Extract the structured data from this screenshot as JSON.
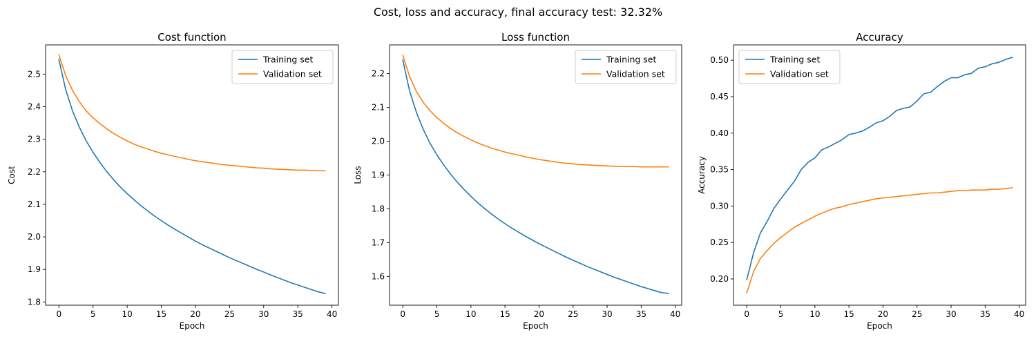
{
  "figure": {
    "suptitle": "Cost, loss and accuracy, final accuracy test: 32.32%"
  },
  "colors": {
    "training": "#1f77b4",
    "validation": "#ff7f0e",
    "axis": "#000000",
    "legend_border": "#cccccc"
  },
  "chart_data": [
    {
      "type": "line",
      "title": "Cost function",
      "xlabel": "Epoch",
      "ylabel": "Cost",
      "xlim": [
        -1.95,
        40.95
      ],
      "ylim": [
        1.79,
        2.59
      ],
      "xticks": [
        0,
        5,
        10,
        15,
        20,
        25,
        30,
        35,
        40
      ],
      "yticks": [
        1.8,
        1.9,
        2.0,
        2.1,
        2.2,
        2.3,
        2.4,
        2.5
      ],
      "ytick_labels": [
        "1.8",
        "1.9",
        "2.0",
        "2.1",
        "2.2",
        "2.3",
        "2.4",
        "2.5"
      ],
      "grid": false,
      "legend_position": "upper right",
      "x": [
        0,
        1,
        2,
        3,
        4,
        5,
        6,
        7,
        8,
        9,
        10,
        11,
        12,
        13,
        14,
        15,
        16,
        17,
        18,
        19,
        20,
        21,
        22,
        23,
        24,
        25,
        26,
        27,
        28,
        29,
        30,
        31,
        32,
        33,
        34,
        35,
        36,
        37,
        38,
        39
      ],
      "series": [
        {
          "name": "Training set",
          "values": [
            2.545,
            2.452,
            2.387,
            2.337,
            2.295,
            2.26,
            2.229,
            2.201,
            2.176,
            2.153,
            2.133,
            2.114,
            2.096,
            2.08,
            2.064,
            2.05,
            2.036,
            2.023,
            2.011,
            1.999,
            1.987,
            1.976,
            1.966,
            1.956,
            1.946,
            1.936,
            1.927,
            1.918,
            1.909,
            1.9,
            1.892,
            1.883,
            1.875,
            1.867,
            1.859,
            1.852,
            1.845,
            1.838,
            1.831,
            1.826
          ]
        },
        {
          "name": "Validation set",
          "values": [
            2.56,
            2.495,
            2.45,
            2.415,
            2.387,
            2.366,
            2.348,
            2.332,
            2.318,
            2.306,
            2.295,
            2.285,
            2.277,
            2.27,
            2.263,
            2.257,
            2.252,
            2.247,
            2.243,
            2.238,
            2.234,
            2.231,
            2.228,
            2.225,
            2.222,
            2.22,
            2.218,
            2.216,
            2.214,
            2.212,
            2.211,
            2.209,
            2.208,
            2.207,
            2.206,
            2.205,
            2.205,
            2.204,
            2.203,
            2.203
          ]
        }
      ]
    },
    {
      "type": "line",
      "title": "Loss function",
      "xlabel": "Epoch",
      "ylabel": "Loss",
      "xlim": [
        -1.95,
        40.95
      ],
      "ylim": [
        1.515,
        2.285
      ],
      "xticks": [
        0,
        5,
        10,
        15,
        20,
        25,
        30,
        35,
        40
      ],
      "yticks": [
        1.6,
        1.7,
        1.8,
        1.9,
        2.0,
        2.1,
        2.2
      ],
      "ytick_labels": [
        "1.6",
        "1.7",
        "1.8",
        "1.9",
        "2.0",
        "2.1",
        "2.2"
      ],
      "grid": false,
      "legend_position": "upper right",
      "x": [
        0,
        1,
        2,
        3,
        4,
        5,
        6,
        7,
        8,
        9,
        10,
        11,
        12,
        13,
        14,
        15,
        16,
        17,
        18,
        19,
        20,
        21,
        22,
        23,
        24,
        25,
        26,
        27,
        28,
        29,
        30,
        31,
        32,
        33,
        34,
        35,
        36,
        37,
        38,
        39
      ],
      "series": [
        {
          "name": "Training set",
          "values": [
            2.24,
            2.148,
            2.085,
            2.035,
            1.994,
            1.96,
            1.93,
            1.903,
            1.879,
            1.857,
            1.837,
            1.818,
            1.801,
            1.785,
            1.77,
            1.756,
            1.743,
            1.731,
            1.719,
            1.708,
            1.697,
            1.687,
            1.677,
            1.667,
            1.657,
            1.648,
            1.639,
            1.63,
            1.622,
            1.614,
            1.606,
            1.598,
            1.591,
            1.584,
            1.577,
            1.57,
            1.564,
            1.558,
            1.552,
            1.55
          ]
        },
        {
          "name": "Validation set",
          "values": [
            2.254,
            2.191,
            2.147,
            2.115,
            2.09,
            2.07,
            2.053,
            2.038,
            2.025,
            2.014,
            2.004,
            1.995,
            1.987,
            1.98,
            1.974,
            1.968,
            1.963,
            1.959,
            1.954,
            1.95,
            1.946,
            1.943,
            1.94,
            1.937,
            1.935,
            1.933,
            1.931,
            1.93,
            1.929,
            1.928,
            1.927,
            1.926,
            1.925,
            1.925,
            1.925,
            1.924,
            1.924,
            1.924,
            1.924,
            1.924
          ]
        }
      ]
    },
    {
      "type": "line",
      "title": "Accuracy",
      "xlabel": "Epoch",
      "ylabel": "Accuracy",
      "xlim": [
        -1.95,
        40.95
      ],
      "ylim": [
        0.164,
        0.521
      ],
      "xticks": [
        0,
        5,
        10,
        15,
        20,
        25,
        30,
        35,
        40
      ],
      "yticks": [
        0.2,
        0.25,
        0.3,
        0.35,
        0.4,
        0.45,
        0.5
      ],
      "ytick_labels": [
        "0.20",
        "0.25",
        "0.30",
        "0.35",
        "0.40",
        "0.45",
        "0.50"
      ],
      "grid": false,
      "legend_position": "upper left",
      "x": [
        0,
        1,
        2,
        3,
        4,
        5,
        6,
        7,
        8,
        9,
        10,
        11,
        12,
        13,
        14,
        15,
        16,
        17,
        18,
        19,
        20,
        21,
        22,
        23,
        24,
        25,
        26,
        27,
        28,
        29,
        30,
        31,
        32,
        33,
        34,
        35,
        36,
        37,
        38,
        39
      ],
      "series": [
        {
          "name": "Training set",
          "values": [
            0.199,
            0.236,
            0.263,
            0.279,
            0.297,
            0.31,
            0.322,
            0.334,
            0.35,
            0.36,
            0.366,
            0.377,
            0.381,
            0.386,
            0.391,
            0.398,
            0.4,
            0.403,
            0.408,
            0.414,
            0.417,
            0.423,
            0.431,
            0.434,
            0.436,
            0.444,
            0.454,
            0.456,
            0.464,
            0.471,
            0.476,
            0.476,
            0.48,
            0.482,
            0.489,
            0.491,
            0.495,
            0.497,
            0.501,
            0.504
          ]
        },
        {
          "name": "Validation set",
          "values": [
            0.181,
            0.21,
            0.228,
            0.239,
            0.249,
            0.257,
            0.264,
            0.271,
            0.276,
            0.281,
            0.286,
            0.29,
            0.294,
            0.297,
            0.299,
            0.302,
            0.304,
            0.306,
            0.308,
            0.31,
            0.311,
            0.312,
            0.313,
            0.314,
            0.315,
            0.316,
            0.317,
            0.318,
            0.318,
            0.319,
            0.32,
            0.321,
            0.321,
            0.322,
            0.322,
            0.322,
            0.323,
            0.323,
            0.324,
            0.325
          ]
        }
      ]
    }
  ]
}
